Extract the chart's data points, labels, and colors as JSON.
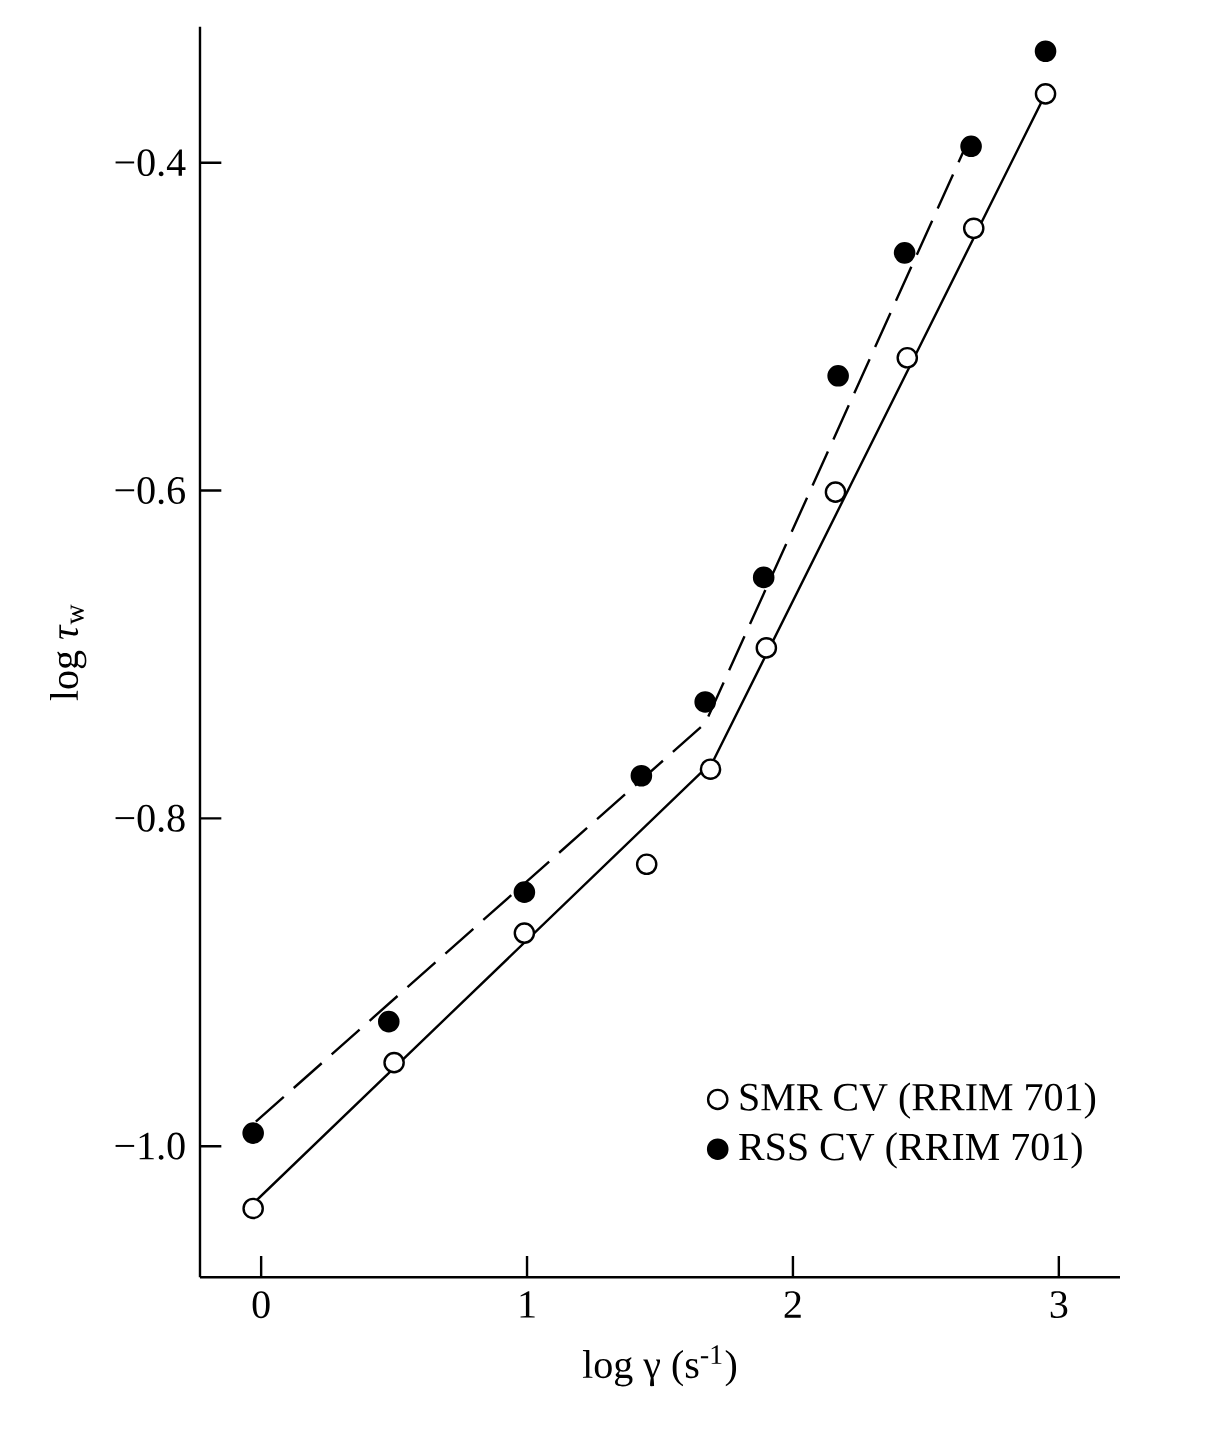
{
  "chart_data": {
    "type": "scatter",
    "xlabel": "log γ (s$^{-1}$)",
    "ylabel": "log *τ*$_{w}$",
    "xlim": [
      -0.23,
      3.23
    ],
    "ylim": [
      -1.08,
      -0.317
    ],
    "xticks": [
      0,
      1,
      2,
      3
    ],
    "yticks": [
      {
        "value": -1.0,
        "label": "−1.0"
      },
      {
        "value": -0.8,
        "label": "−0.8"
      },
      {
        "value": -0.6,
        "label": "−0.6"
      },
      {
        "value": -0.4,
        "label": "−0.4"
      }
    ],
    "legend": "bottom right",
    "grid": false,
    "series": [
      {
        "name": "SMR CV (RRIM 701)",
        "marker": "circle",
        "color": "#ffffff",
        "x": [
          -0.03,
          0.5,
          0.99,
          1.45,
          1.69,
          1.9,
          2.16,
          2.43,
          2.68,
          2.95
        ],
        "values": [
          -1.038,
          -0.949,
          -0.87,
          -0.828,
          -0.77,
          -0.696,
          -0.601,
          -0.519,
          -0.44,
          -0.358
        ]
      },
      {
        "name": "RSS CV (RRIM 701)",
        "marker": "circle",
        "color": "#000000",
        "x": [
          -0.03,
          0.48,
          0.99,
          1.43,
          1.67,
          1.89,
          2.17,
          2.42,
          2.67,
          2.95
        ],
        "values": [
          -0.992,
          -0.924,
          -0.845,
          -0.774,
          -0.729,
          -0.653,
          -0.53,
          -0.455,
          -0.39,
          -0.332
        ]
      },
      {
        "type": "line",
        "line_style": "solid",
        "marker": "none",
        "color": "#000000",
        "x": [
          -0.03,
          1.7,
          2.95
        ],
        "values": [
          -1.035,
          -0.765,
          -0.358
        ]
      },
      {
        "type": "line",
        "line_style": "dashed",
        "marker": "none",
        "color": "#000000",
        "x": [
          -0.02,
          1.67,
          2.65
        ],
        "values": [
          -0.985,
          -0.742,
          -0.39
        ]
      }
    ]
  }
}
